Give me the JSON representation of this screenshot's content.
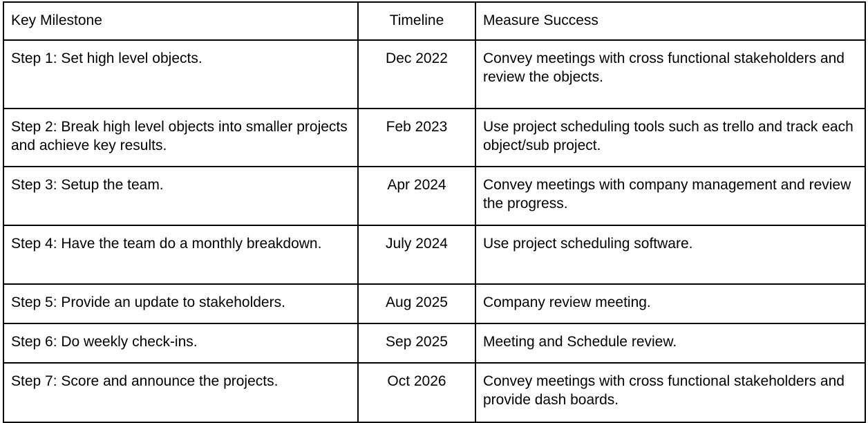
{
  "table": {
    "headers": [
      "Key Milestone",
      "Timeline",
      "Measure Success"
    ],
    "rows": [
      {
        "milestone": "Step 1: Set high level objects.",
        "timeline": "Dec 2022",
        "success": "Convey meetings with cross functional stakeholders and review the objects."
      },
      {
        "milestone": "Step 2: Break high level objects into smaller projects and achieve key results.",
        "timeline": "Feb 2023",
        "success": "Use project scheduling tools such as trello and track each object/sub project."
      },
      {
        "milestone": "Step 3: Setup the team.",
        "timeline": "Apr 2024",
        "success": "Convey meetings with company management and review the progress."
      },
      {
        "milestone": "Step 4: Have the team do a monthly breakdown.",
        "timeline": "July 2024",
        "success": "Use project scheduling software."
      },
      {
        "milestone": "Step 5: Provide an update to stakeholders.",
        "timeline": "Aug 2025",
        "success": "Company review meeting."
      },
      {
        "milestone": "Step 6: Do weekly check-ins.",
        "timeline": "Sep 2025",
        "success": "Meeting and Schedule review."
      },
      {
        "milestone": "Step 7: Score and announce the projects.",
        "timeline": "Oct 2026",
        "success": "Convey meetings with cross functional stakeholders and provide dash boards."
      }
    ]
  }
}
